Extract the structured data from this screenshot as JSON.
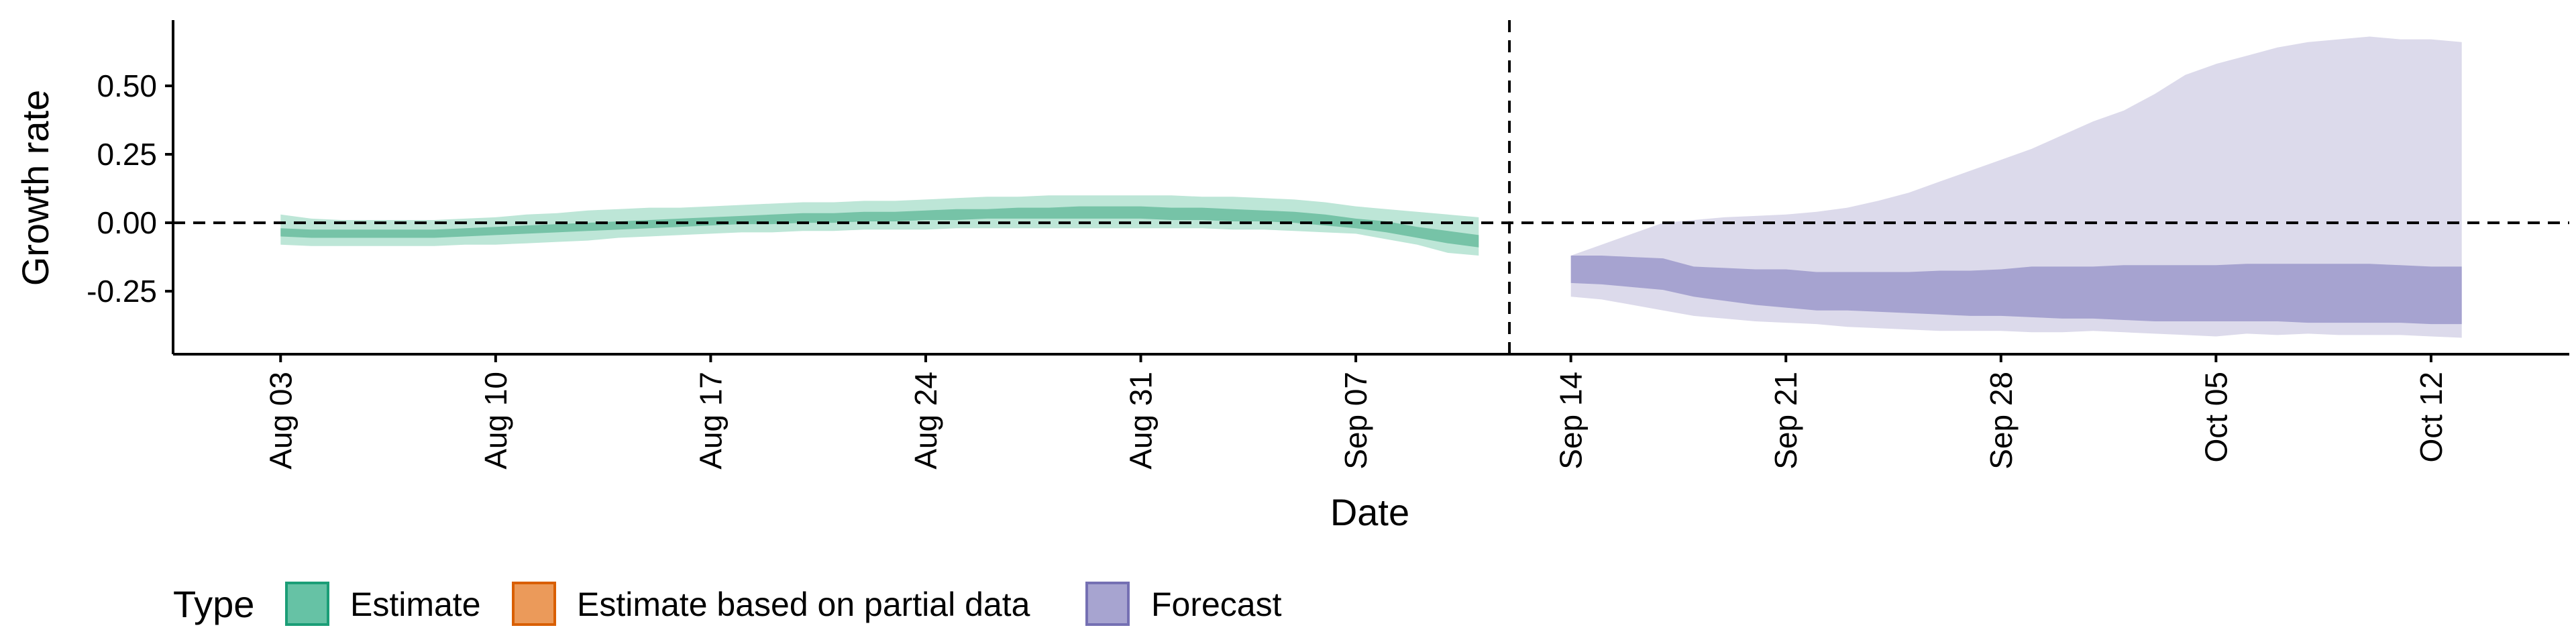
{
  "chart_data": {
    "type": "area",
    "xlabel": "Date",
    "ylabel": "Growth rate",
    "x_start": "2020-08-03",
    "x_ticks": [
      "Aug 03",
      "Aug 10",
      "Aug 17",
      "Aug 24",
      "Aug 31",
      "Sep 07",
      "Sep 14",
      "Sep 21",
      "Sep 28",
      "Oct 05",
      "Oct 12"
    ],
    "y_ticks": [
      "0.50",
      "0.25",
      "0.00",
      "-0.25"
    ],
    "y_tick_values": [
      0.5,
      0.25,
      0.0,
      -0.25
    ],
    "ylim": [
      -0.48,
      0.74
    ],
    "xlim": [
      -3.5,
      74.5
    ],
    "reference_lines": [
      {
        "axis": "y",
        "value": 0.0,
        "style": "dashed"
      },
      {
        "axis": "x",
        "date": "2020-09-12",
        "style": "dashed"
      }
    ],
    "legend": {
      "title": "Type",
      "position": "bottom",
      "entries": [
        {
          "label": "Estimate",
          "fill": "#66c2a5",
          "border": "#1b9e77"
        },
        {
          "label": "Estimate based on partial data",
          "fill": "#eb9a5a",
          "border": "#d95f02"
        },
        {
          "label": "Forecast",
          "fill": "#a7a4d0",
          "border": "#7570b3"
        }
      ]
    },
    "series": [
      {
        "name": "Estimate",
        "outer_fill": "#bde6d7",
        "inner_fill": "#76c3a7",
        "x": [
          "Aug 03",
          "Aug 04",
          "Aug 05",
          "Aug 06",
          "Aug 07",
          "Aug 08",
          "Aug 09",
          "Aug 10",
          "Aug 11",
          "Aug 12",
          "Aug 13",
          "Aug 14",
          "Aug 15",
          "Aug 16",
          "Aug 17",
          "Aug 18",
          "Aug 19",
          "Aug 20",
          "Aug 21",
          "Aug 22",
          "Aug 23",
          "Aug 24",
          "Aug 25",
          "Aug 26",
          "Aug 27",
          "Aug 28",
          "Aug 29",
          "Aug 30",
          "Aug 31",
          "Sep 01",
          "Sep 02",
          "Sep 03",
          "Sep 04",
          "Sep 05",
          "Sep 06",
          "Sep 07",
          "Sep 08",
          "Sep 09",
          "Sep 10",
          "Sep 11"
        ],
        "outer_lower": [
          -0.08,
          -0.085,
          -0.085,
          -0.085,
          -0.085,
          -0.085,
          -0.08,
          -0.08,
          -0.075,
          -0.07,
          -0.065,
          -0.055,
          -0.05,
          -0.045,
          -0.04,
          -0.035,
          -0.035,
          -0.03,
          -0.03,
          -0.025,
          -0.025,
          -0.025,
          -0.02,
          -0.02,
          -0.02,
          -0.02,
          -0.02,
          -0.02,
          -0.02,
          -0.02,
          -0.02,
          -0.025,
          -0.025,
          -0.03,
          -0.035,
          -0.04,
          -0.06,
          -0.08,
          -0.11,
          -0.12
        ],
        "outer_upper": [
          0.03,
          0.015,
          0.01,
          0.01,
          0.01,
          0.01,
          0.015,
          0.02,
          0.03,
          0.035,
          0.045,
          0.05,
          0.055,
          0.055,
          0.06,
          0.065,
          0.07,
          0.075,
          0.075,
          0.08,
          0.08,
          0.085,
          0.09,
          0.095,
          0.095,
          0.1,
          0.1,
          0.1,
          0.1,
          0.1,
          0.095,
          0.095,
          0.09,
          0.085,
          0.075,
          0.06,
          0.05,
          0.04,
          0.03,
          0.02
        ],
        "inner_lower": [
          -0.05,
          -0.055,
          -0.055,
          -0.055,
          -0.055,
          -0.055,
          -0.05,
          -0.045,
          -0.04,
          -0.035,
          -0.03,
          -0.025,
          -0.02,
          -0.015,
          -0.01,
          -0.005,
          -0.005,
          0.0,
          0.0,
          0.005,
          0.005,
          0.01,
          0.01,
          0.015,
          0.015,
          0.015,
          0.015,
          0.015,
          0.015,
          0.01,
          0.01,
          0.005,
          0.005,
          0.0,
          -0.01,
          -0.02,
          -0.035,
          -0.055,
          -0.075,
          -0.09
        ],
        "inner_upper": [
          -0.02,
          -0.025,
          -0.025,
          -0.025,
          -0.025,
          -0.025,
          -0.02,
          -0.015,
          -0.01,
          -0.005,
          0.0,
          0.005,
          0.01,
          0.015,
          0.02,
          0.025,
          0.03,
          0.035,
          0.035,
          0.04,
          0.04,
          0.045,
          0.05,
          0.05,
          0.055,
          0.055,
          0.06,
          0.06,
          0.06,
          0.055,
          0.055,
          0.05,
          0.045,
          0.04,
          0.03,
          0.015,
          0.005,
          -0.015,
          -0.03,
          -0.045
        ]
      },
      {
        "name": "Forecast",
        "outer_fill": "#dcdaeb",
        "inner_fill": "#a6a3d0",
        "x": [
          "Sep 14",
          "Sep 15",
          "Sep 16",
          "Sep 17",
          "Sep 18",
          "Sep 19",
          "Sep 20",
          "Sep 21",
          "Sep 22",
          "Sep 23",
          "Sep 24",
          "Sep 25",
          "Sep 26",
          "Sep 27",
          "Sep 28",
          "Sep 29",
          "Sep 30",
          "Oct 01",
          "Oct 02",
          "Oct 03",
          "Oct 04",
          "Oct 05",
          "Oct 06",
          "Oct 07",
          "Oct 08",
          "Oct 09",
          "Oct 10",
          "Oct 11",
          "Oct 12",
          "Oct 13"
        ],
        "outer_lower": [
          -0.27,
          -0.28,
          -0.3,
          -0.32,
          -0.34,
          -0.35,
          -0.36,
          -0.365,
          -0.37,
          -0.38,
          -0.385,
          -0.39,
          -0.395,
          -0.395,
          -0.395,
          -0.4,
          -0.4,
          -0.395,
          -0.4,
          -0.405,
          -0.41,
          -0.415,
          -0.405,
          -0.41,
          -0.405,
          -0.41,
          -0.41,
          -0.41,
          -0.415,
          -0.42
        ],
        "outer_upper": [
          -0.12,
          -0.08,
          -0.04,
          0.0,
          0.01,
          0.02,
          0.025,
          0.03,
          0.04,
          0.055,
          0.08,
          0.11,
          0.15,
          0.19,
          0.23,
          0.27,
          0.32,
          0.37,
          0.41,
          0.47,
          0.54,
          0.58,
          0.61,
          0.64,
          0.66,
          0.67,
          0.68,
          0.67,
          0.67,
          0.66
        ],
        "inner_lower": [
          -0.22,
          -0.225,
          -0.235,
          -0.245,
          -0.27,
          -0.285,
          -0.3,
          -0.31,
          -0.32,
          -0.32,
          -0.325,
          -0.33,
          -0.335,
          -0.34,
          -0.34,
          -0.345,
          -0.35,
          -0.35,
          -0.355,
          -0.36,
          -0.36,
          -0.36,
          -0.36,
          -0.36,
          -0.365,
          -0.365,
          -0.365,
          -0.365,
          -0.37,
          -0.37
        ],
        "inner_upper": [
          -0.12,
          -0.12,
          -0.125,
          -0.13,
          -0.16,
          -0.165,
          -0.17,
          -0.17,
          -0.18,
          -0.18,
          -0.18,
          -0.18,
          -0.175,
          -0.175,
          -0.17,
          -0.16,
          -0.16,
          -0.16,
          -0.155,
          -0.155,
          -0.155,
          -0.155,
          -0.15,
          -0.15,
          -0.15,
          -0.15,
          -0.15,
          -0.155,
          -0.16,
          -0.16
        ]
      }
    ]
  }
}
